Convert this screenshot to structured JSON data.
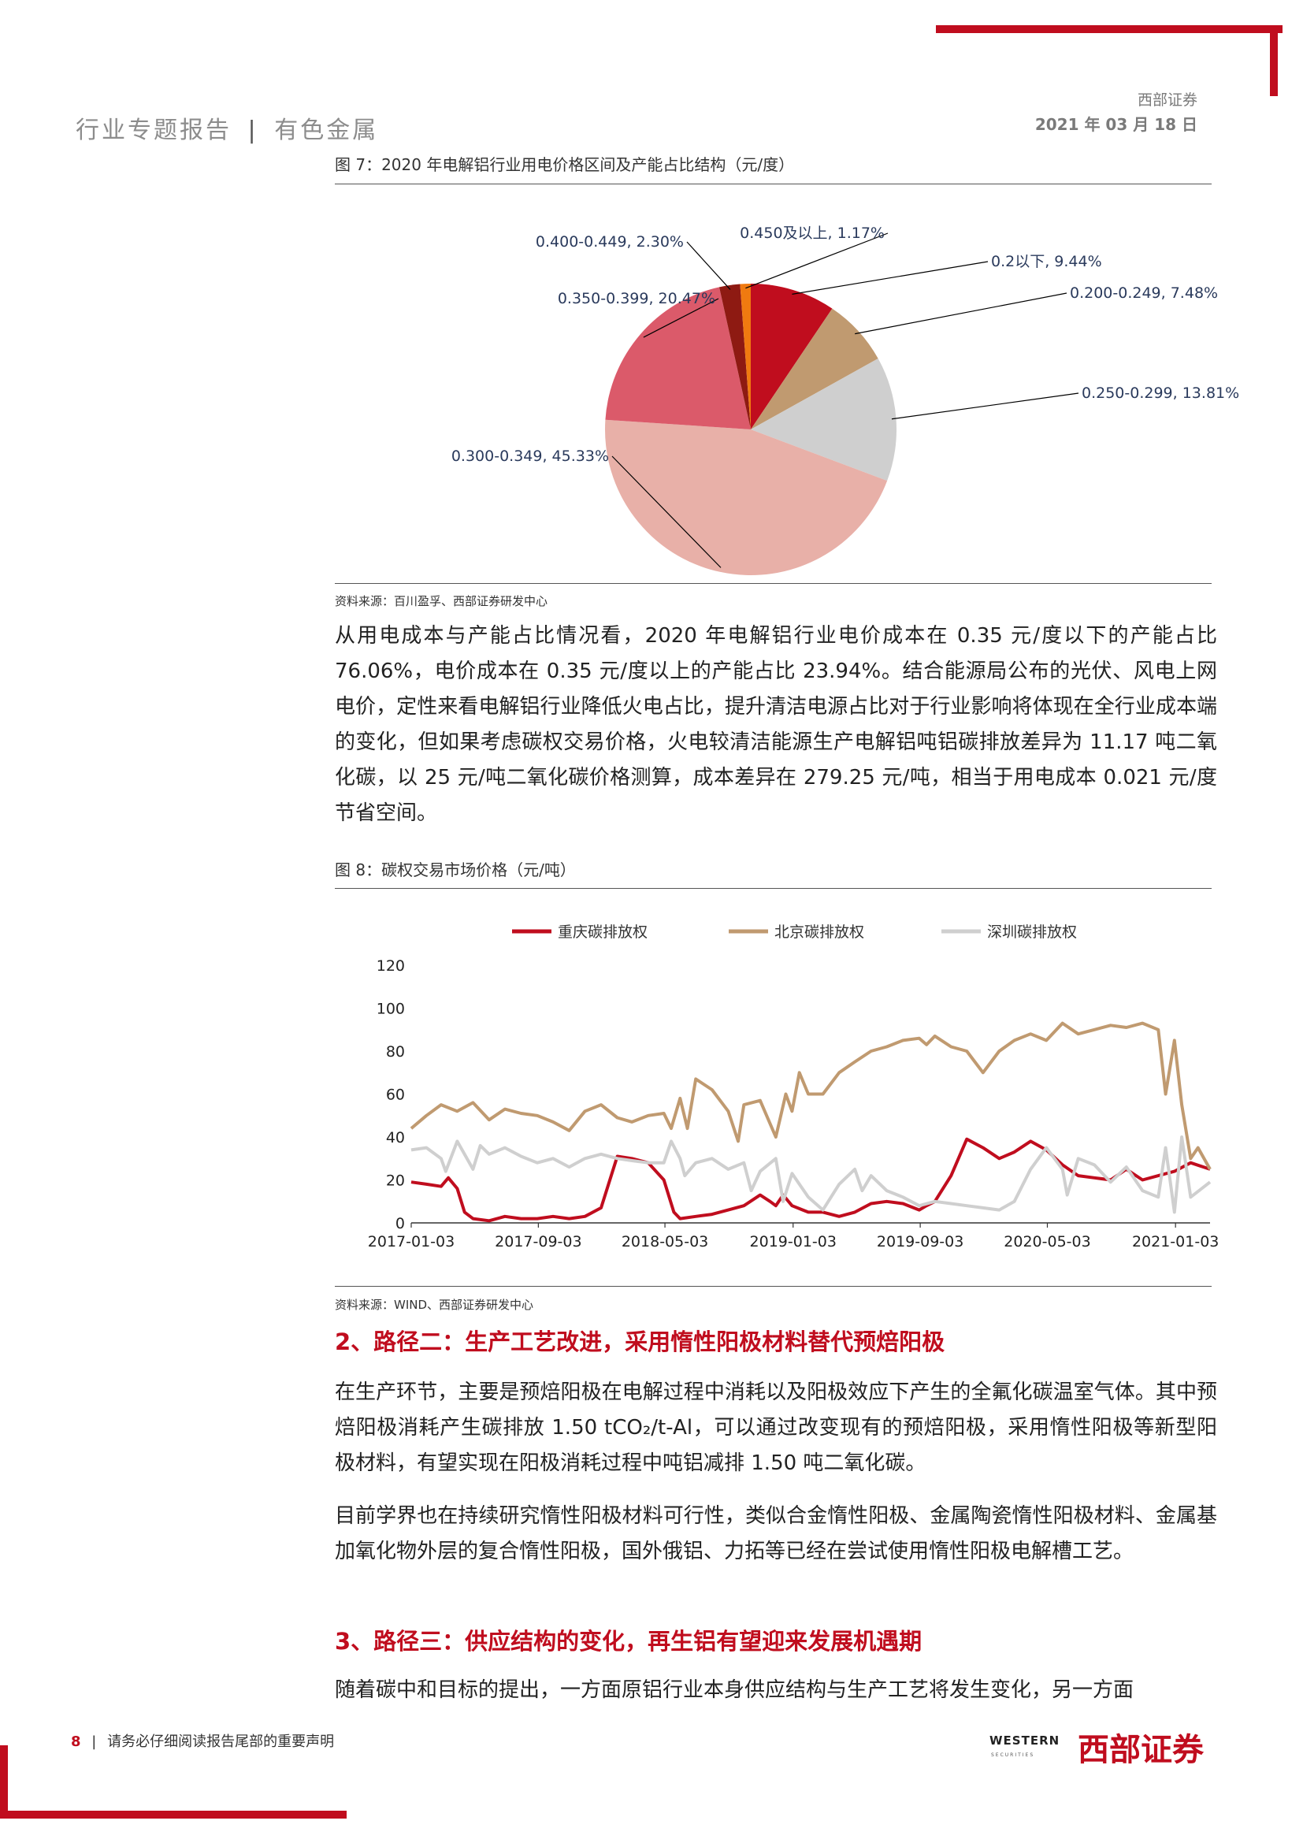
{
  "header": {
    "report_type": "行业专题报告",
    "separator": "|",
    "industry": "有色金属",
    "company": "西部证券",
    "date": "2021 年 03 月 18 日"
  },
  "figure7": {
    "title": "图 7：2020 年电解铝行业用电价格区间及产能占比结构（元/度）",
    "source": "资料来源：百川盈孚、西部证券研发中心",
    "chart_data": {
      "type": "pie",
      "slices": [
        {
          "label": "0.2以下, 9.44%",
          "name": "0.2以下",
          "value": 9.44,
          "color": "#c00d1e"
        },
        {
          "label": "0.200-0.249, 7.48%",
          "name": "0.200-0.249",
          "value": 7.48,
          "color": "#c09a70"
        },
        {
          "label": "0.250-0.299, 13.81%",
          "name": "0.250-0.299",
          "value": 13.81,
          "color": "#cfcfcf"
        },
        {
          "label": "0.300-0.349, 45.33%",
          "name": "0.300-0.349",
          "value": 45.33,
          "color": "#e8b0a8"
        },
        {
          "label": "0.350-0.399, 20.47%",
          "name": "0.350-0.399",
          "value": 20.47,
          "color": "#db5a6a"
        },
        {
          "label": "0.400-0.449, 2.30%",
          "name": "0.400-0.449",
          "value": 2.3,
          "color": "#8e1a12"
        },
        {
          "label": "0.450及以上, 1.17%",
          "name": "0.450及以上",
          "value": 1.17,
          "color": "#f07a10"
        }
      ]
    }
  },
  "paragraph1": "从用电成本与产能占比情况看，2020 年电解铝行业电价成本在 0.35 元/度以下的产能占比 76.06%，电价成本在 0.35 元/度以上的产能占比 23.94%。结合能源局公布的光伏、风电上网电价，定性来看电解铝行业降低火电占比，提升清洁电源占比对于行业影响将体现在全行业成本端的变化，但如果考虑碳权交易价格，火电较清洁能源生产电解铝吨铝碳排放差异为 11.17 吨二氧化碳，以 25 元/吨二氧化碳价格测算，成本差异在 279.25 元/吨，相当于用电成本 0.021 元/度节省空间。",
  "figure8": {
    "title": "图 8：碳权交易市场价格（元/吨）",
    "source": "资料来源：WIND、西部证券研发中心",
    "chart_data": {
      "type": "line",
      "ylim": [
        0,
        120
      ],
      "yticks": [
        "0",
        "20",
        "40",
        "60",
        "80",
        "100",
        "120"
      ],
      "xticks": [
        "2017-01-03",
        "2017-09-03",
        "2018-05-03",
        "2019-01-03",
        "2019-09-03",
        "2020-05-03",
        "2021-01-03"
      ],
      "xrange": [
        "2017-01-03",
        "2021-03-10"
      ],
      "legend_position": "top",
      "series": [
        {
          "name": "重庆碳排放权",
          "color": "#c00d1e",
          "points": [
            [
              "2017-01-03",
              19
            ],
            [
              "2017-02-01",
              18
            ],
            [
              "2017-03-01",
              17
            ],
            [
              "2017-03-15",
              21
            ],
            [
              "2017-04-01",
              16
            ],
            [
              "2017-04-15",
              5
            ],
            [
              "2017-05-01",
              2
            ],
            [
              "2017-06-01",
              1
            ],
            [
              "2017-07-01",
              3
            ],
            [
              "2017-08-01",
              2
            ],
            [
              "2017-09-01",
              2
            ],
            [
              "2017-10-01",
              3
            ],
            [
              "2017-11-01",
              2
            ],
            [
              "2017-12-01",
              3
            ],
            [
              "2018-01-01",
              7
            ],
            [
              "2018-02-01",
              31
            ],
            [
              "2018-03-01",
              30
            ],
            [
              "2018-04-01",
              28
            ],
            [
              "2018-05-01",
              20
            ],
            [
              "2018-05-20",
              5
            ],
            [
              "2018-06-01",
              2
            ],
            [
              "2018-07-01",
              3
            ],
            [
              "2018-08-01",
              4
            ],
            [
              "2018-09-01",
              6
            ],
            [
              "2018-10-01",
              8
            ],
            [
              "2018-11-01",
              13
            ],
            [
              "2018-11-20",
              10
            ],
            [
              "2018-12-01",
              8
            ],
            [
              "2018-12-15",
              13
            ],
            [
              "2019-01-01",
              8
            ],
            [
              "2019-02-01",
              5
            ],
            [
              "2019-03-01",
              5
            ],
            [
              "2019-04-01",
              3
            ],
            [
              "2019-05-01",
              5
            ],
            [
              "2019-06-01",
              9
            ],
            [
              "2019-07-01",
              10
            ],
            [
              "2019-08-01",
              9
            ],
            [
              "2019-09-01",
              6
            ],
            [
              "2019-09-15",
              8
            ],
            [
              "2019-10-01",
              10
            ],
            [
              "2019-11-01",
              22
            ],
            [
              "2019-12-01",
              39
            ],
            [
              "2020-01-01",
              35
            ],
            [
              "2020-02-01",
              30
            ],
            [
              "2020-03-01",
              33
            ],
            [
              "2020-04-01",
              38
            ],
            [
              "2020-05-01",
              34
            ],
            [
              "2020-06-01",
              27
            ],
            [
              "2020-07-01",
              22
            ],
            [
              "2020-08-01",
              21
            ],
            [
              "2020-09-01",
              20
            ],
            [
              "2020-10-01",
              25
            ],
            [
              "2020-11-01",
              20
            ],
            [
              "2020-12-01",
              22
            ],
            [
              "2021-01-01",
              24
            ],
            [
              "2021-02-01",
              28
            ],
            [
              "2021-03-10",
              25
            ]
          ]
        },
        {
          "name": "北京碳排放权",
          "color": "#c09a70",
          "points": [
            [
              "2017-01-03",
              44
            ],
            [
              "2017-02-01",
              50
            ],
            [
              "2017-03-01",
              55
            ],
            [
              "2017-04-01",
              52
            ],
            [
              "2017-05-01",
              56
            ],
            [
              "2017-06-01",
              48
            ],
            [
              "2017-07-01",
              53
            ],
            [
              "2017-08-01",
              51
            ],
            [
              "2017-09-01",
              50
            ],
            [
              "2017-10-01",
              47
            ],
            [
              "2017-11-01",
              43
            ],
            [
              "2017-12-01",
              52
            ],
            [
              "2018-01-01",
              55
            ],
            [
              "2018-02-01",
              49
            ],
            [
              "2018-03-01",
              47
            ],
            [
              "2018-04-01",
              50
            ],
            [
              "2018-05-01",
              51
            ],
            [
              "2018-05-15",
              44
            ],
            [
              "2018-06-01",
              58
            ],
            [
              "2018-06-15",
              44
            ],
            [
              "2018-07-01",
              67
            ],
            [
              "2018-08-01",
              62
            ],
            [
              "2018-09-01",
              52
            ],
            [
              "2018-09-20",
              38
            ],
            [
              "2018-10-01",
              55
            ],
            [
              "2018-11-01",
              57
            ],
            [
              "2018-12-01",
              40
            ],
            [
              "2018-12-20",
              60
            ],
            [
              "2019-01-01",
              52
            ],
            [
              "2019-01-15",
              70
            ],
            [
              "2019-02-01",
              60
            ],
            [
              "2019-03-01",
              60
            ],
            [
              "2019-04-01",
              70
            ],
            [
              "2019-05-01",
              75
            ],
            [
              "2019-06-01",
              80
            ],
            [
              "2019-07-01",
              82
            ],
            [
              "2019-08-01",
              85
            ],
            [
              "2019-09-01",
              86
            ],
            [
              "2019-09-15",
              83
            ],
            [
              "2019-10-01",
              87
            ],
            [
              "2019-11-01",
              82
            ],
            [
              "2019-12-01",
              80
            ],
            [
              "2020-01-01",
              70
            ],
            [
              "2020-02-01",
              80
            ],
            [
              "2020-03-01",
              85
            ],
            [
              "2020-04-01",
              88
            ],
            [
              "2020-05-01",
              85
            ],
            [
              "2020-06-01",
              93
            ],
            [
              "2020-07-01",
              88
            ],
            [
              "2020-08-01",
              90
            ],
            [
              "2020-09-01",
              92
            ],
            [
              "2020-10-01",
              91
            ],
            [
              "2020-11-01",
              93
            ],
            [
              "2020-12-01",
              90
            ],
            [
              "2020-12-15",
              60
            ],
            [
              "2021-01-01",
              85
            ],
            [
              "2021-01-15",
              55
            ],
            [
              "2021-02-01",
              30
            ],
            [
              "2021-02-15",
              35
            ],
            [
              "2021-03-10",
              25
            ]
          ]
        },
        {
          "name": "深圳碳排放权",
          "color": "#cfcfcf",
          "points": [
            [
              "2017-01-03",
              34
            ],
            [
              "2017-02-01",
              35
            ],
            [
              "2017-03-01",
              30
            ],
            [
              "2017-03-10",
              24
            ],
            [
              "2017-04-01",
              38
            ],
            [
              "2017-05-01",
              25
            ],
            [
              "2017-05-15",
              36
            ],
            [
              "2017-06-01",
              32
            ],
            [
              "2017-07-01",
              35
            ],
            [
              "2017-08-01",
              31
            ],
            [
              "2017-09-01",
              28
            ],
            [
              "2017-10-01",
              30
            ],
            [
              "2017-11-01",
              26
            ],
            [
              "2017-12-01",
              30
            ],
            [
              "2018-01-01",
              32
            ],
            [
              "2018-02-01",
              30
            ],
            [
              "2018-03-01",
              29
            ],
            [
              "2018-04-01",
              28
            ],
            [
              "2018-05-01",
              28
            ],
            [
              "2018-05-15",
              38
            ],
            [
              "2018-06-01",
              30
            ],
            [
              "2018-06-10",
              22
            ],
            [
              "2018-07-01",
              28
            ],
            [
              "2018-08-01",
              30
            ],
            [
              "2018-09-01",
              25
            ],
            [
              "2018-10-01",
              28
            ],
            [
              "2018-10-15",
              15
            ],
            [
              "2018-11-01",
              24
            ],
            [
              "2018-12-01",
              30
            ],
            [
              "2018-12-15",
              10
            ],
            [
              "2019-01-01",
              23
            ],
            [
              "2019-02-01",
              12
            ],
            [
              "2019-03-01",
              6
            ],
            [
              "2019-04-01",
              18
            ],
            [
              "2019-05-01",
              25
            ],
            [
              "2019-05-15",
              15
            ],
            [
              "2019-06-01",
              22
            ],
            [
              "2019-07-01",
              15
            ],
            [
              "2019-08-01",
              12
            ],
            [
              "2019-09-01",
              8
            ],
            [
              "2019-10-01",
              10
            ],
            [
              "2019-11-01",
              9
            ],
            [
              "2019-12-01",
              8
            ],
            [
              "2020-01-01",
              7
            ],
            [
              "2020-02-01",
              6
            ],
            [
              "2020-03-01",
              10
            ],
            [
              "2020-04-01",
              25
            ],
            [
              "2020-05-01",
              35
            ],
            [
              "2020-06-01",
              25
            ],
            [
              "2020-06-10",
              13
            ],
            [
              "2020-07-01",
              30
            ],
            [
              "2020-08-01",
              27
            ],
            [
              "2020-09-01",
              19
            ],
            [
              "2020-10-01",
              26
            ],
            [
              "2020-11-01",
              15
            ],
            [
              "2020-12-01",
              12
            ],
            [
              "2020-12-15",
              35
            ],
            [
              "2021-01-01",
              5
            ],
            [
              "2021-01-15",
              40
            ],
            [
              "2021-02-01",
              12
            ],
            [
              "2021-03-10",
              19
            ]
          ]
        }
      ]
    }
  },
  "section2_title": "2、路径二：生产工艺改进，采用惰性阳极材料替代预焙阳极",
  "paragraph2": "在生产环节，主要是预焙阳极在电解过程中消耗以及阳极效应下产生的全氟化碳温室气体。其中预焙阳极消耗产生碳排放 1.50 tCO₂/t-Al，可以通过改变现有的预焙阳极，采用惰性阳极等新型阳极材料，有望实现在阳极消耗过程中吨铝减排 1.50 吨二氧化碳。",
  "paragraph3": "目前学界也在持续研究惰性阳极材料可行性，类似合金惰性阳极、金属陶瓷惰性阳极材料、金属基加氧化物外层的复合惰性阳极，国外俄铝、力拓等已经在尝试使用惰性阳极电解槽工艺。",
  "section3_title": "3、路径三：供应结构的变化，再生铝有望迎来发展机遇期",
  "paragraph4": "随着碳中和目标的提出，一方面原铝行业本身供应结构与生产工艺将发生变化，另一方面",
  "footer": {
    "page_number": "8",
    "separator": "|",
    "notice": "请务必仔细阅读报告尾部的重要声明",
    "logo_en": "WESTERN",
    "logo_en_sub": "SECURITIES",
    "logo_cn": "西部证券"
  }
}
